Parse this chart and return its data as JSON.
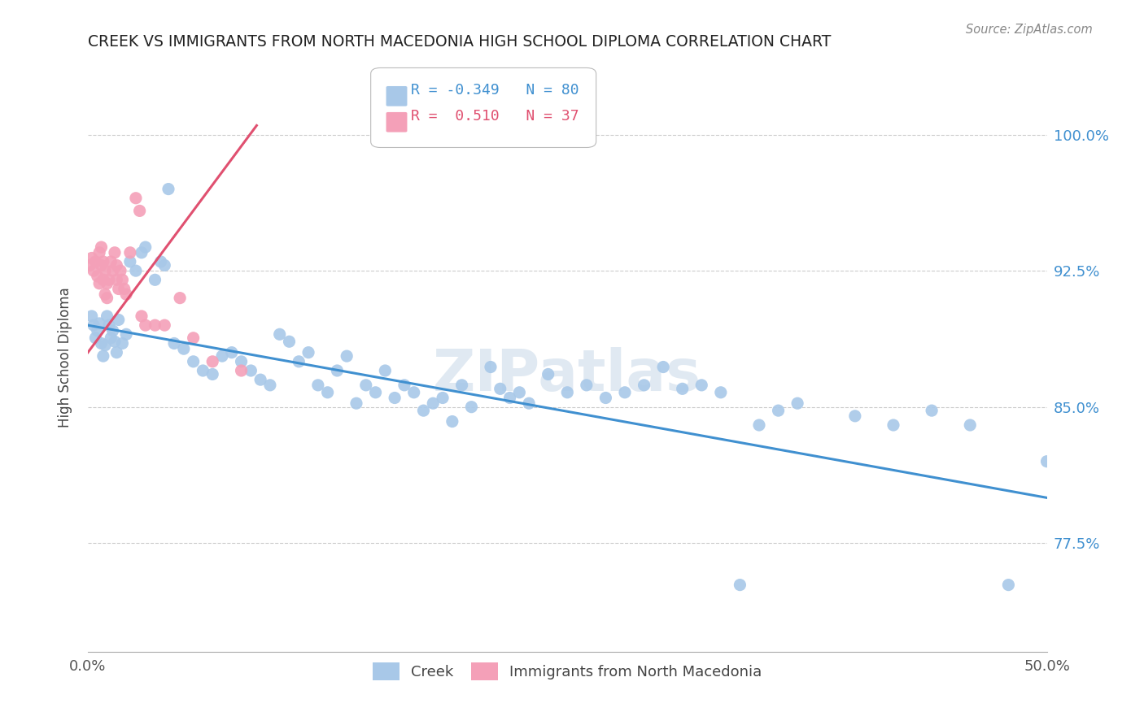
{
  "title": "CREEK VS IMMIGRANTS FROM NORTH MACEDONIA HIGH SCHOOL DIPLOMA CORRELATION CHART",
  "source": "Source: ZipAtlas.com",
  "ylabel": "High School Diploma",
  "ytick_values": [
    0.775,
    0.85,
    0.925,
    1.0
  ],
  "ytick_labels": [
    "77.5%",
    "85.0%",
    "92.5%",
    "100.0%"
  ],
  "xmin": 0.0,
  "xmax": 0.5,
  "ymin": 0.715,
  "ymax": 1.04,
  "legend_creek_R": "-0.349",
  "legend_creek_N": "80",
  "legend_mac_R": "0.510",
  "legend_mac_N": "37",
  "creek_color": "#a8c8e8",
  "mac_color": "#f4a0b8",
  "creek_line_color": "#4090d0",
  "mac_line_color": "#e05070",
  "watermark": "ZIPatlas",
  "creek_line_x0": 0.0,
  "creek_line_x1": 0.5,
  "creek_line_y0": 0.895,
  "creek_line_y1": 0.8,
  "mac_line_x0": 0.0,
  "mac_line_x1": 0.088,
  "mac_line_y0": 0.88,
  "mac_line_y1": 1.005
}
